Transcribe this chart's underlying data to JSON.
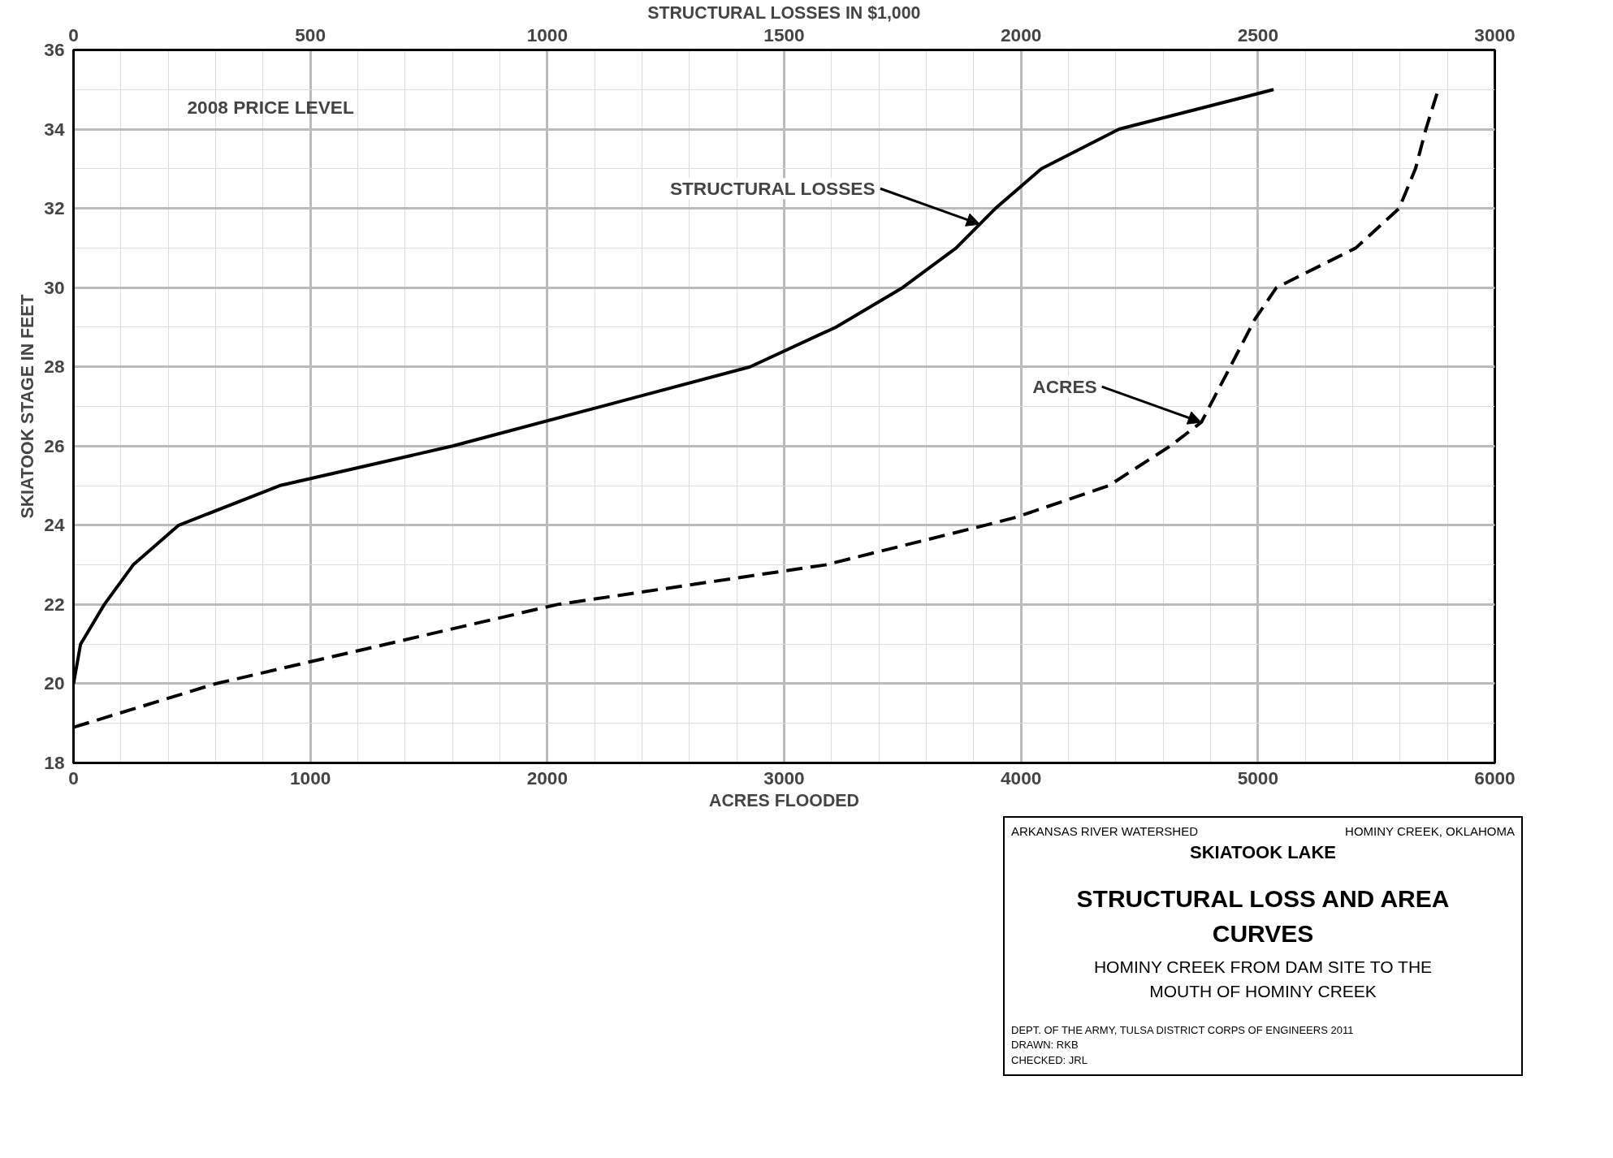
{
  "chart_data": {
    "type": "line",
    "title": "STRUCTURAL LOSS AND AREA CURVES",
    "subtitle": "HOMINY CREEK FROM DAM SITE TO THE MOUTH OF HOMINY CREEK",
    "xlabel": "ACRES FLOODED",
    "x2label": "STRUCTURAL LOSSES IN $1,000",
    "ylabel": "SKIATOOK STAGE IN FEET",
    "xlim": [
      0,
      6000
    ],
    "xticks": [
      0,
      1000,
      2000,
      3000,
      4000,
      5000,
      6000
    ],
    "x2lim": [
      0,
      3000
    ],
    "x2ticks": [
      0,
      500,
      1000,
      1500,
      2000,
      2500,
      3000
    ],
    "ylim": [
      18,
      36
    ],
    "yticks": [
      18,
      20,
      22,
      24,
      26,
      28,
      30,
      32,
      34,
      36
    ],
    "grid": true,
    "marker": "none",
    "series": [
      {
        "color": "#000000",
        "axis": "x2",
        "line_style": "solid",
        "x": [
          0,
          15,
          65,
          126,
          222,
          435,
          800,
          1428,
          1609,
          1750,
          1863,
          1946,
          2043,
          2207,
          2533
        ],
        "values": [
          20.0,
          21.0,
          22.0,
          23.0,
          24.0,
          25.0,
          26.0,
          28.0,
          29.0,
          30.0,
          31.0,
          32.0,
          33.0,
          34.0,
          35.0
        ]
      },
      {
        "color": "#000000",
        "line_style": "dashed",
        "x": [
          0,
          600,
          2043,
          3174,
          3848,
          3978,
          4370,
          4630,
          4761,
          4883,
          4987,
          5078,
          5413,
          5596,
          5665,
          5709,
          5761
        ],
        "values": [
          18.9,
          20.0,
          22.0,
          23.0,
          24.0,
          24.2,
          25.0,
          26.0,
          26.6,
          28.0,
          29.2,
          30.0,
          31.0,
          32.0,
          33.0,
          34.0,
          35.0
        ]
      }
    ],
    "annotations": [
      "2008 PRICE LEVEL",
      {
        "text": "STRUCTURAL LOSSES",
        "x": 3826,
        "y": 31.6
      },
      {
        "text": "ACRES",
        "x": 4761,
        "y": 26.6
      },
      "ARKANSAS RIVER WATERSHED",
      "HOMINY CREEK, OKLAHOMA",
      "SKIATOOK LAKE",
      "DEPT. OF THE ARMY, TULSA DISTRICT CORPS OF ENGINEERS 2011",
      "DRAWN: RKB",
      "CHECKED: JRL"
    ]
  }
}
